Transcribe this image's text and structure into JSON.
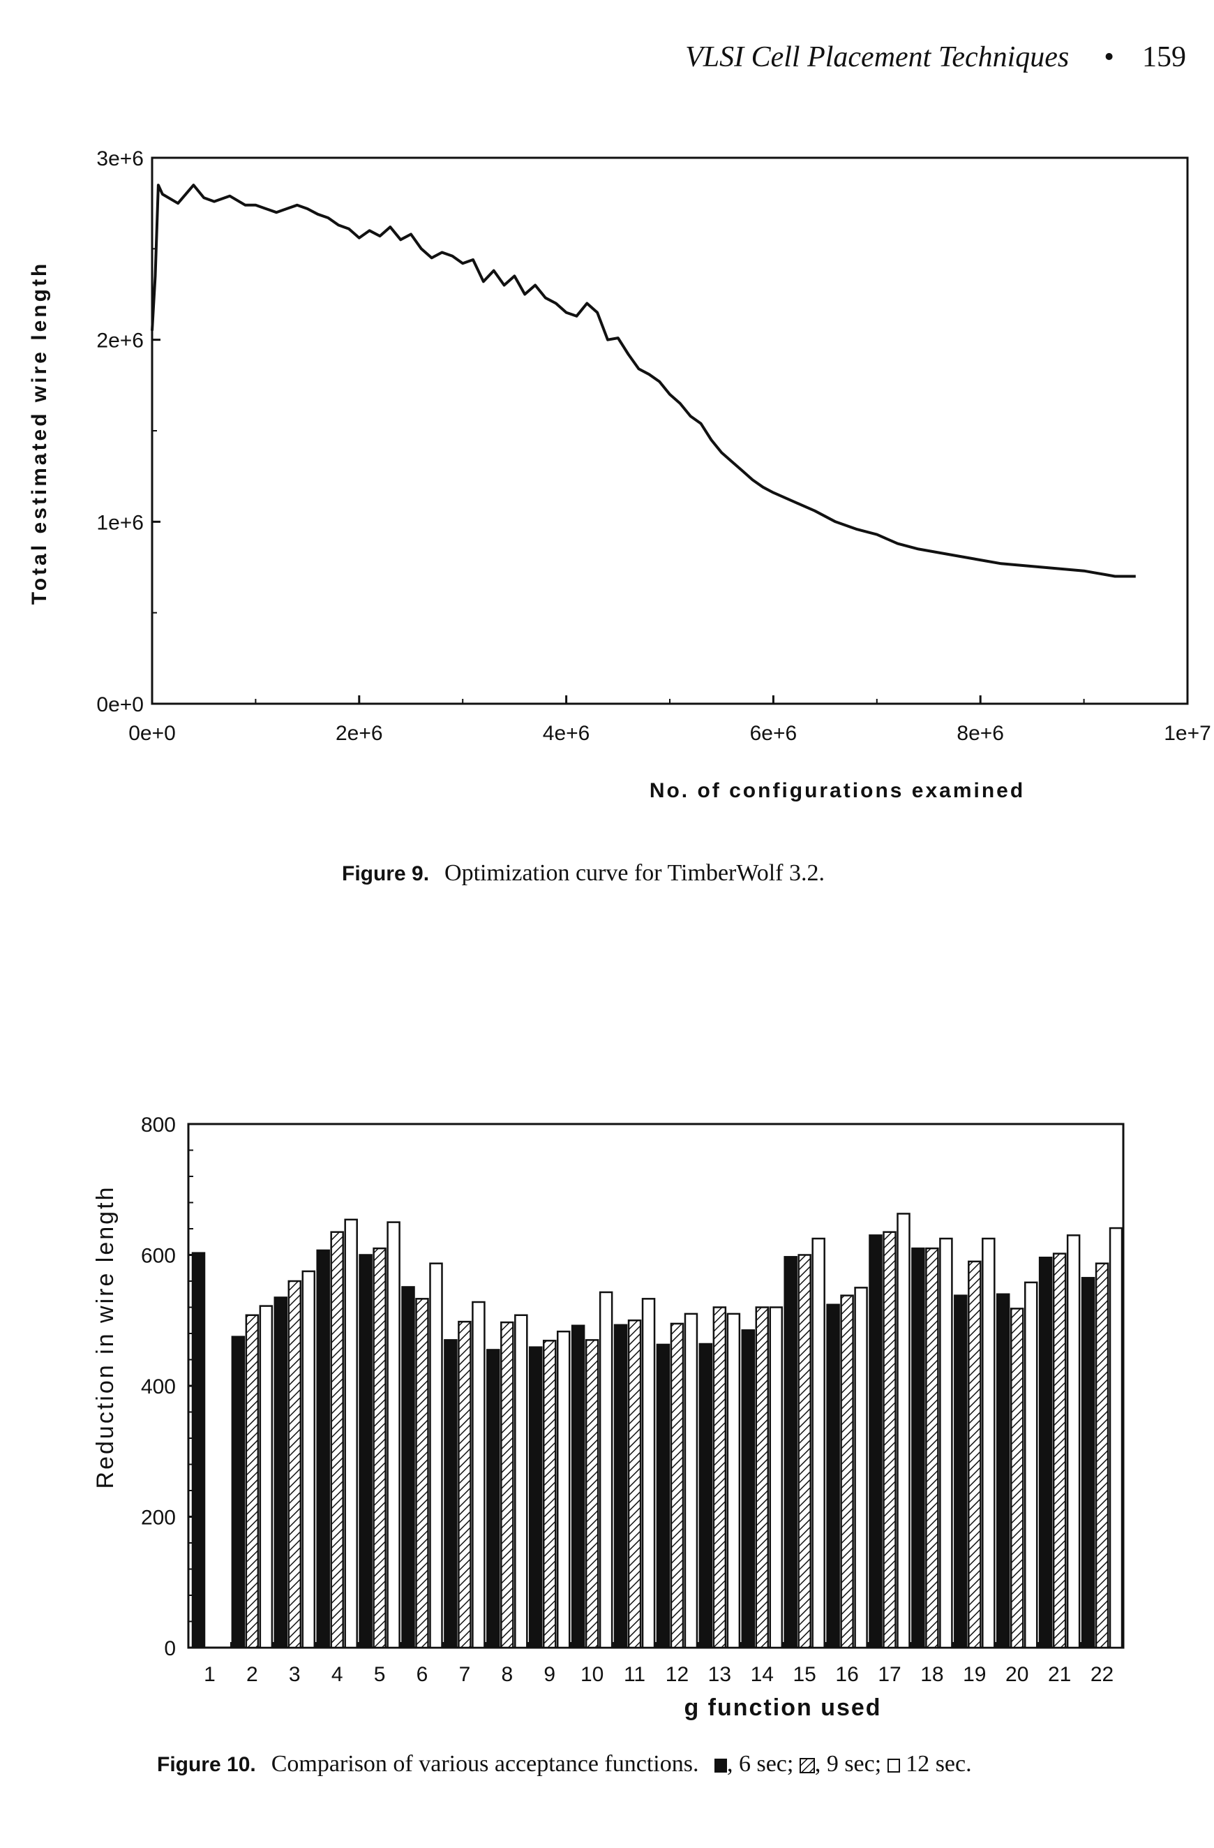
{
  "running_head": {
    "title": "VLSI Cell Placement Techniques",
    "separator": "•",
    "page_number": "159"
  },
  "figure9": {
    "label": "Figure 9.",
    "caption": "Optimization curve for TimberWolf 3.2."
  },
  "figure10": {
    "label": "Figure 10.",
    "caption_parts": [
      ", 6 sec; ",
      ", 9 sec; ",
      " 12 sec."
    ],
    "caption_pre": "Comparison of various acceptance functions."
  },
  "chart_data": [
    {
      "type": "line",
      "title": "",
      "xlabel": "No. of configurations examined",
      "ylabel": "Total estimated wire length",
      "xlim": [
        0,
        10000000
      ],
      "ylim": [
        0,
        3000000
      ],
      "x_ticks": [
        "0e+0",
        "2e+6",
        "4e+6",
        "6e+6",
        "8e+6",
        "1e+7"
      ],
      "y_ticks": [
        "0e+0",
        "1e+6",
        "2e+6",
        "3e+6"
      ],
      "grid": false,
      "series": [
        {
          "x": [
            0,
            30000,
            60000,
            100000,
            250000,
            400000,
            500000,
            600000,
            750000,
            900000,
            1000000,
            1100000,
            1200000,
            1300000,
            1400000,
            1500000,
            1600000,
            1700000,
            1800000,
            1900000,
            2000000,
            2100000,
            2200000,
            2300000,
            2400000,
            2500000,
            2600000,
            2700000,
            2800000,
            2900000,
            3000000,
            3100000,
            3200000,
            3300000,
            3400000,
            3500000,
            3600000,
            3700000,
            3800000,
            3900000,
            4000000,
            4100000,
            4200000,
            4300000,
            4400000,
            4500000,
            4600000,
            4700000,
            4800000,
            4900000,
            5000000,
            5100000,
            5200000,
            5300000,
            5400000,
            5500000,
            5600000,
            5700000,
            5800000,
            5900000,
            6000000,
            6200000,
            6400000,
            6600000,
            6800000,
            7000000,
            7200000,
            7400000,
            7600000,
            7800000,
            8000000,
            8200000,
            8400000,
            8600000,
            8800000,
            9000000,
            9100000,
            9200000,
            9300000,
            9400000,
            9500000
          ],
          "y": [
            2050000,
            2350000,
            2850000,
            2800000,
            2750000,
            2850000,
            2780000,
            2760000,
            2790000,
            2740000,
            2740000,
            2720000,
            2700000,
            2720000,
            2740000,
            2720000,
            2690000,
            2670000,
            2630000,
            2610000,
            2560000,
            2600000,
            2570000,
            2620000,
            2550000,
            2580000,
            2500000,
            2450000,
            2480000,
            2460000,
            2420000,
            2440000,
            2320000,
            2380000,
            2300000,
            2350000,
            2250000,
            2300000,
            2230000,
            2200000,
            2150000,
            2130000,
            2200000,
            2150000,
            2000000,
            2010000,
            1920000,
            1840000,
            1810000,
            1770000,
            1700000,
            1650000,
            1580000,
            1540000,
            1450000,
            1380000,
            1330000,
            1280000,
            1230000,
            1190000,
            1160000,
            1110000,
            1060000,
            1000000,
            960000,
            930000,
            880000,
            850000,
            830000,
            810000,
            790000,
            770000,
            760000,
            750000,
            740000,
            730000,
            720000,
            710000,
            700000,
            700000,
            700000
          ]
        }
      ]
    },
    {
      "type": "bar",
      "title": "",
      "xlabel": "g function used",
      "ylabel": "Reduction in wire length",
      "ylim": [
        0,
        800
      ],
      "y_ticks": [
        "0",
        "200",
        "400",
        "600",
        "800"
      ],
      "grid": false,
      "categories": [
        "1",
        "2",
        "3",
        "4",
        "5",
        "6",
        "7",
        "8",
        "9",
        "10",
        "11",
        "12",
        "13",
        "14",
        "15",
        "16",
        "17",
        "18",
        "19",
        "20",
        "21",
        "22"
      ],
      "series": [
        {
          "fill": "solid",
          "values": [
            603,
            475,
            535,
            607,
            600,
            551,
            470,
            455,
            459,
            492,
            493,
            463,
            464,
            485,
            597,
            524,
            630,
            610,
            538,
            540,
            596,
            565
          ]
        },
        {
          "fill": "hatched",
          "values": [
            null,
            508,
            560,
            635,
            610,
            533,
            498,
            497,
            469,
            470,
            500,
            495,
            520,
            520,
            600,
            538,
            635,
            610,
            590,
            518,
            602,
            587
          ]
        },
        {
          "fill": "open",
          "values": [
            null,
            522,
            575,
            654,
            650,
            587,
            528,
            508,
            483,
            543,
            533,
            510,
            510,
            520,
            625,
            550,
            663,
            625,
            625,
            558,
            630,
            641
          ]
        }
      ]
    }
  ]
}
